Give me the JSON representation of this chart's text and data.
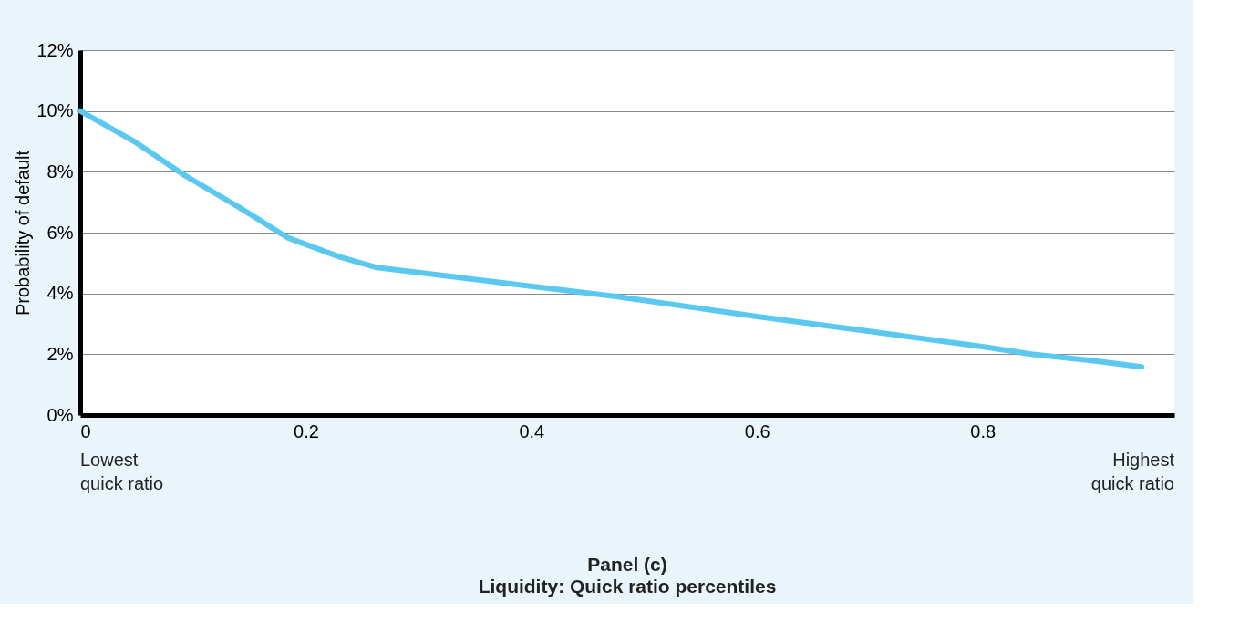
{
  "chart_data": {
    "type": "line",
    "title": "Panel (c)",
    "subtitle": "Liquidity: Quick ratio percentiles",
    "ylabel": "Probability of default",
    "annotations": [
      "Lowest\nquick ratio",
      "Highest\nquick ratio"
    ],
    "x": [
      0,
      0.05,
      0.09,
      0.14,
      0.184,
      0.23,
      0.263,
      0.33,
      0.396,
      0.475,
      0.6,
      0.7,
      0.8,
      0.843,
      0.9,
      0.941
    ],
    "series": [
      {
        "color": "#5bc8f0",
        "values": [
          10,
          8.95,
          7.94,
          6.85,
          5.83,
          5.2,
          4.85,
          4.55,
          4.25,
          3.9,
          3.24,
          2.75,
          2.25,
          2.0,
          1.78,
          1.58
        ]
      }
    ],
    "xlim": [
      0,
      0.97
    ],
    "xticks": [
      0,
      0.2,
      0.4,
      0.6,
      0.8
    ],
    "ylim": [
      0,
      12
    ],
    "yticks": [
      {
        "value": 0,
        "label": "0%"
      },
      {
        "value": 2,
        "label": "2%"
      },
      {
        "value": 4,
        "label": "4%"
      },
      {
        "value": 6,
        "label": "6%"
      },
      {
        "value": 8,
        "label": "8%"
      },
      {
        "value": 10,
        "label": "10%"
      },
      {
        "value": 12,
        "label": "12%"
      }
    ],
    "grid": "y",
    "marker": "none",
    "line_style": "solid",
    "legend": false
  }
}
